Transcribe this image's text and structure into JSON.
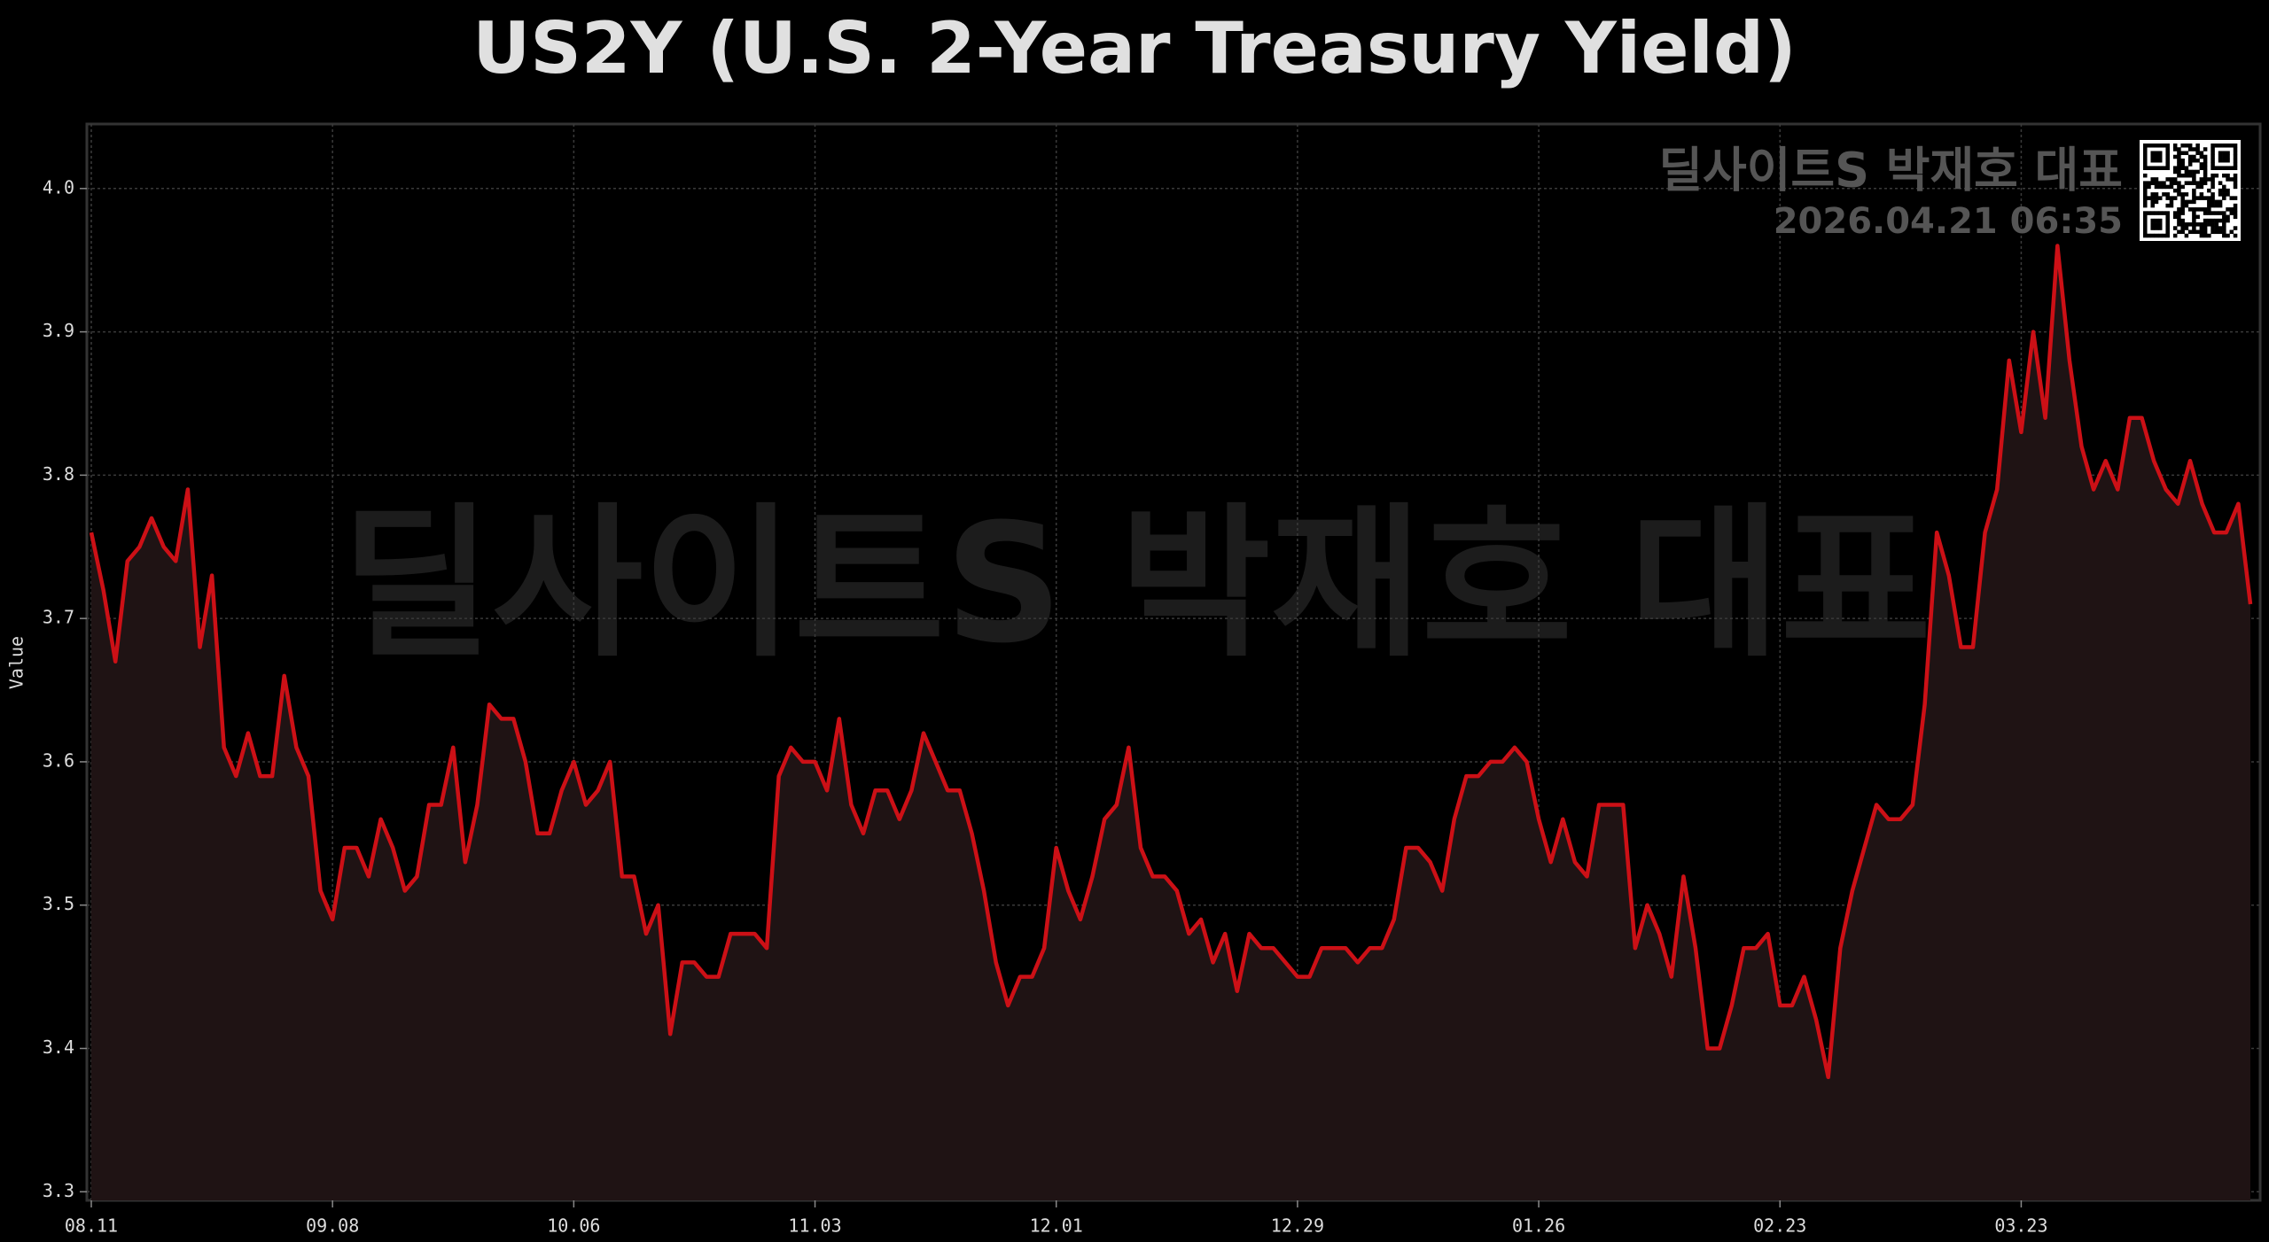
{
  "chart_data": {
    "type": "line",
    "title": "US2Y (U.S. 2-Year Treasury Yield)",
    "y_label": "Value",
    "annotations": [
      "딜사이트S 박재호 대표",
      "2026.04.21 06:35"
    ],
    "color": "#cc1016",
    "area_color": "#1f1314",
    "grid": true,
    "categories": [
      "08.11",
      null,
      null,
      null,
      null,
      null,
      null,
      null,
      null,
      null,
      null,
      null,
      null,
      null,
      null,
      null,
      null,
      null,
      null,
      null,
      "09.08",
      null,
      null,
      null,
      null,
      null,
      null,
      null,
      null,
      null,
      null,
      null,
      null,
      null,
      null,
      null,
      null,
      null,
      null,
      null,
      "10.06",
      null,
      null,
      null,
      null,
      null,
      null,
      null,
      null,
      null,
      null,
      null,
      null,
      null,
      null,
      null,
      null,
      null,
      null,
      null,
      "11.03",
      null,
      null,
      null,
      null,
      null,
      null,
      null,
      null,
      null,
      null,
      null,
      null,
      null,
      null,
      null,
      null,
      null,
      null,
      null,
      "12.01",
      null,
      null,
      null,
      null,
      null,
      null,
      null,
      null,
      null,
      null,
      null,
      null,
      null,
      null,
      null,
      null,
      null,
      null,
      null,
      "12.29",
      null,
      null,
      null,
      null,
      null,
      null,
      null,
      null,
      null,
      null,
      null,
      null,
      null,
      null,
      null,
      null,
      null,
      null,
      null,
      "01.26",
      null,
      null,
      null,
      null,
      null,
      null,
      null,
      null,
      null,
      null,
      null,
      null,
      null,
      null,
      null,
      null,
      null,
      null,
      null,
      "02.23",
      null,
      null,
      null,
      null,
      null,
      null,
      null,
      null,
      null,
      null,
      null,
      null,
      null,
      null,
      null,
      null,
      null,
      null,
      null,
      "03.23",
      null,
      null,
      null,
      null,
      null,
      null,
      null,
      null,
      null,
      null,
      null,
      null,
      null,
      null,
      null,
      null,
      null,
      null,
      null
    ],
    "values": [
      3.76,
      3.72,
      3.67,
      3.74,
      3.75,
      3.77,
      3.75,
      3.74,
      3.79,
      3.68,
      3.73,
      3.61,
      3.59,
      3.62,
      3.59,
      3.59,
      3.66,
      3.61,
      3.59,
      3.51,
      3.49,
      3.54,
      3.54,
      3.52,
      3.56,
      3.54,
      3.51,
      3.52,
      3.57,
      3.57,
      3.61,
      3.53,
      3.57,
      3.64,
      3.63,
      3.63,
      3.6,
      3.55,
      3.55,
      3.58,
      3.6,
      3.57,
      3.58,
      3.6,
      3.52,
      3.52,
      3.48,
      3.5,
      3.41,
      3.46,
      3.46,
      3.45,
      3.45,
      3.48,
      3.48,
      3.48,
      3.47,
      3.59,
      3.61,
      3.6,
      3.6,
      3.58,
      3.63,
      3.57,
      3.55,
      3.58,
      3.58,
      3.56,
      3.58,
      3.62,
      3.6,
      3.58,
      3.58,
      3.55,
      3.51,
      3.46,
      3.43,
      3.45,
      3.45,
      3.47,
      3.54,
      3.51,
      3.49,
      3.52,
      3.56,
      3.57,
      3.61,
      3.54,
      3.52,
      3.52,
      3.51,
      3.48,
      3.49,
      3.46,
      3.48,
      3.44,
      3.48,
      3.47,
      3.47,
      3.46,
      3.45,
      3.45,
      3.47,
      3.47,
      3.47,
      3.46,
      3.47,
      3.47,
      3.49,
      3.54,
      3.54,
      3.53,
      3.51,
      3.56,
      3.59,
      3.59,
      3.6,
      3.6,
      3.61,
      3.6,
      3.56,
      3.53,
      3.56,
      3.53,
      3.52,
      3.57,
      3.57,
      3.57,
      3.47,
      3.5,
      3.48,
      3.45,
      3.52,
      3.47,
      3.4,
      3.4,
      3.43,
      3.47,
      3.47,
      3.48,
      3.43,
      3.43,
      3.45,
      3.42,
      3.38,
      3.47,
      3.51,
      3.54,
      3.57,
      3.56,
      3.56,
      3.57,
      3.64,
      3.76,
      3.73,
      3.68,
      3.68,
      3.76,
      3.79,
      3.88,
      3.83,
      3.9,
      3.84,
      3.96,
      3.88,
      3.82,
      3.79,
      3.81,
      3.79,
      3.84,
      3.84,
      3.81,
      3.79,
      3.78,
      3.81,
      3.78,
      3.76,
      3.76,
      3.78,
      3.71
    ],
    "ylim": [
      3.294,
      4.045
    ],
    "yticks": [
      3.3,
      3.4,
      3.5,
      3.6,
      3.7,
      3.8,
      3.9,
      {
        "value": 4,
        "label": "4.0"
      }
    ]
  }
}
